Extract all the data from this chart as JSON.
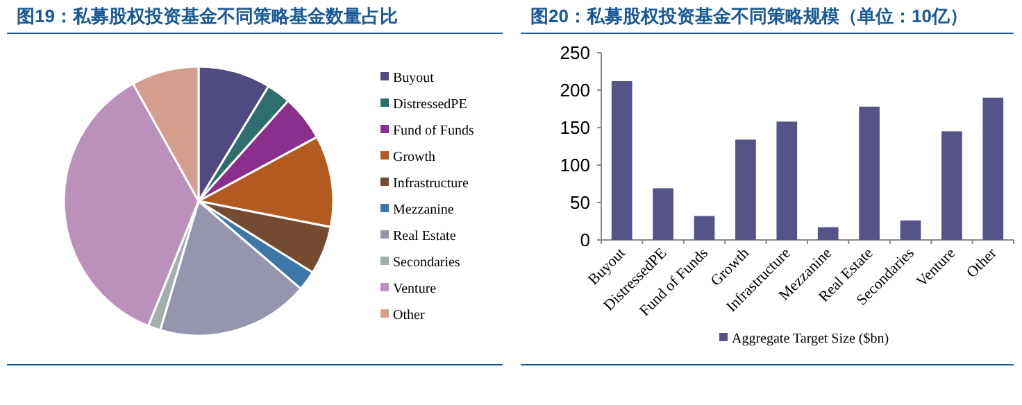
{
  "chart_data": [
    {
      "type": "pie",
      "title": "图19：私募股权投资基金不同策略基金数量占比",
      "legend": "right",
      "categories": [
        "Buyout",
        "DistressedPE",
        "Fund of Funds",
        "Growth",
        "Infrastructure",
        "Mezzanine",
        "Real Estate",
        "Secondaries",
        "Venture",
        "Other"
      ],
      "values": [
        8.7,
        2.9,
        5.5,
        11.0,
        5.8,
        2.4,
        18.3,
        1.5,
        35.8,
        8.1
      ],
      "colors": [
        "#4f4a7f",
        "#2e6e6e",
        "#8a2f8e",
        "#b35a20",
        "#744a30",
        "#3b78a8",
        "#9595ae",
        "#a3aeae",
        "#bb90bb",
        "#d49e8e"
      ]
    },
    {
      "type": "bar",
      "title": "图20：私募股权投资基金不同策略规模（单位：10亿）",
      "legend": "bottom",
      "grid": false,
      "categories": [
        "Buyout",
        "DistressedPE",
        "Fund of Funds",
        "Growth",
        "Infrastructure",
        "Mezzanine",
        "Real Estate",
        "Secondaries",
        "Venture",
        "Other"
      ],
      "ylim": [
        0,
        250
      ],
      "yticks": [
        0,
        50,
        100,
        150,
        200,
        250
      ],
      "series": [
        {
          "name": "Aggregate Target Size ($bn)",
          "color": "#555388",
          "values": [
            212,
            69,
            32,
            134,
            158,
            17,
            178,
            26,
            145,
            190
          ]
        }
      ]
    }
  ]
}
